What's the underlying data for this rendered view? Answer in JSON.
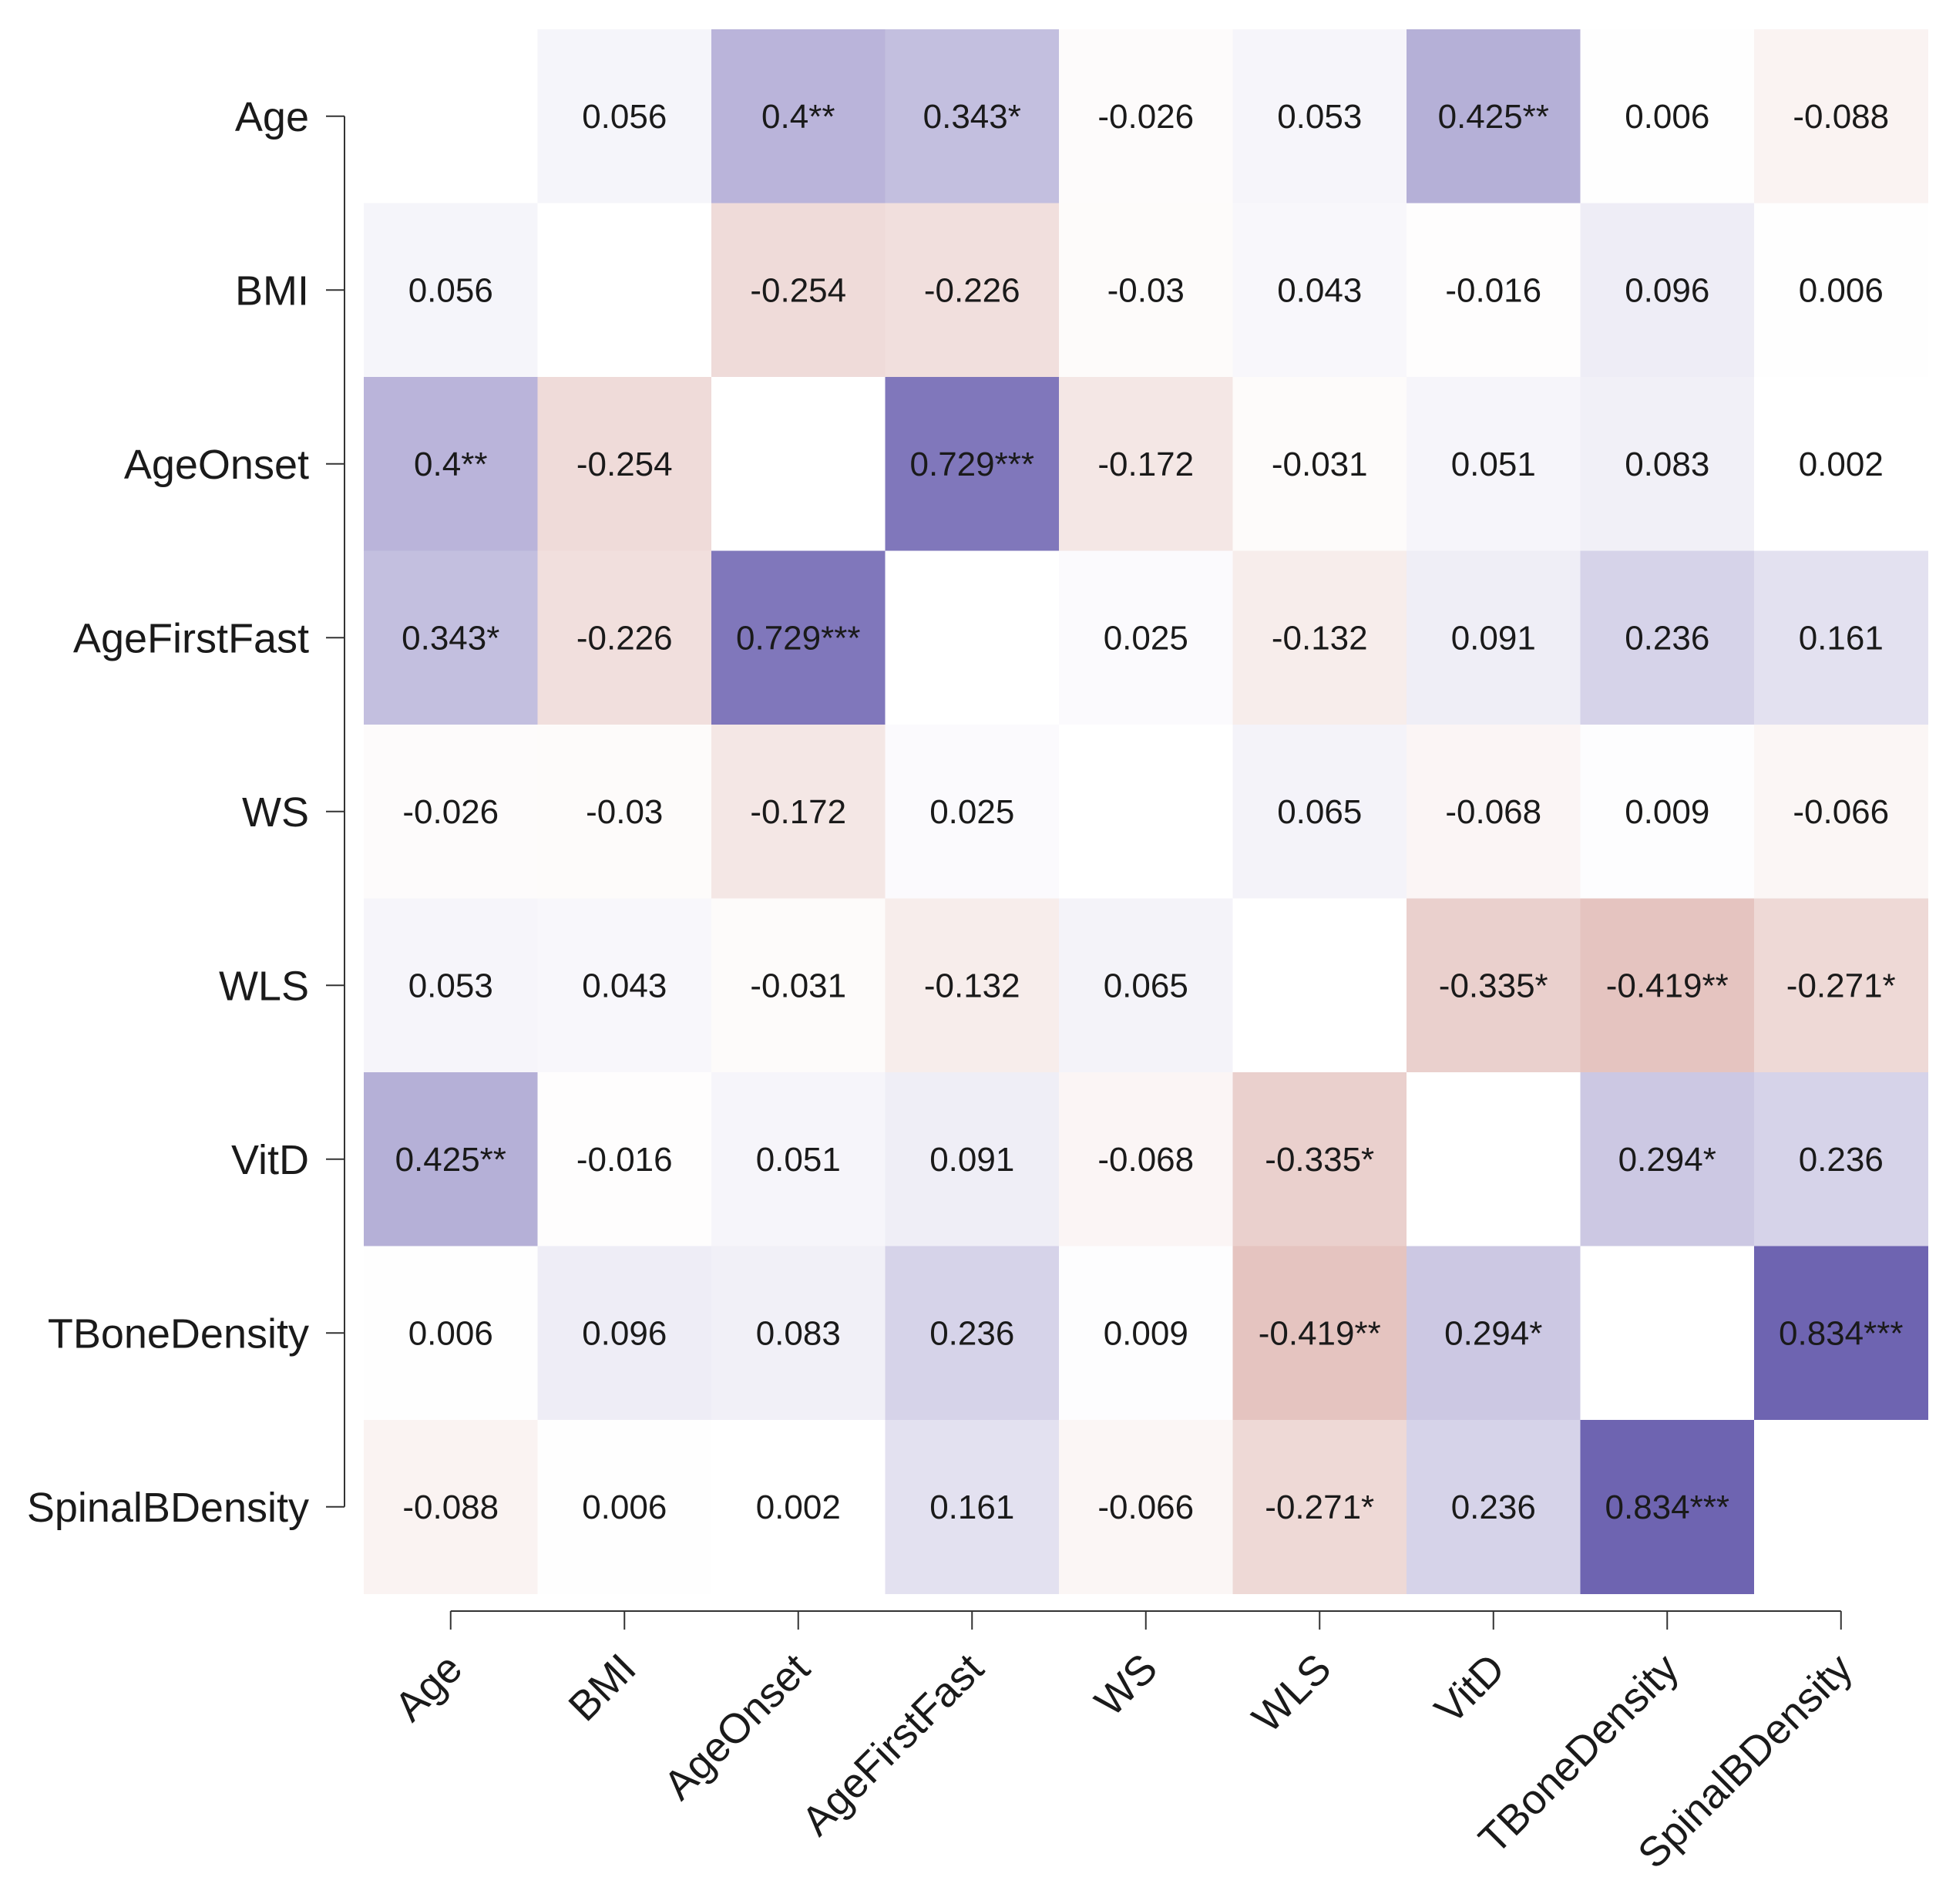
{
  "chart_data": {
    "type": "heatmap",
    "title": "",
    "xlabel": "",
    "ylabel": "",
    "variables": [
      "Age",
      "BMI",
      "AgeOnset",
      "AgeFirstFast",
      "WS",
      "WLS",
      "VitD",
      "TBoneDensity",
      "SpinalBDensity"
    ],
    "matrix": [
      [
        null,
        0.056,
        0.4,
        0.343,
        -0.026,
        0.053,
        0.425,
        0.006,
        -0.088
      ],
      [
        0.056,
        null,
        -0.254,
        -0.226,
        -0.03,
        0.043,
        -0.016,
        0.096,
        0.006
      ],
      [
        0.4,
        -0.254,
        null,
        0.729,
        -0.172,
        -0.031,
        0.051,
        0.083,
        0.002
      ],
      [
        0.343,
        -0.226,
        0.729,
        null,
        0.025,
        -0.132,
        0.091,
        0.236,
        0.161
      ],
      [
        -0.026,
        -0.03,
        -0.172,
        0.025,
        null,
        0.065,
        -0.068,
        0.009,
        -0.066
      ],
      [
        0.053,
        0.043,
        -0.031,
        -0.132,
        0.065,
        null,
        -0.335,
        -0.419,
        -0.271
      ],
      [
        0.425,
        -0.016,
        0.051,
        0.091,
        -0.068,
        -0.335,
        null,
        0.294,
        0.236
      ],
      [
        0.006,
        0.096,
        0.083,
        0.236,
        0.009,
        -0.419,
        0.294,
        null,
        0.834
      ],
      [
        -0.088,
        0.006,
        0.002,
        0.161,
        -0.066,
        -0.271,
        0.236,
        0.834,
        null
      ]
    ],
    "labels": [
      [
        "",
        "0.056",
        "0.4**",
        "0.343*",
        "-0.026",
        "0.053",
        "0.425**",
        "0.006",
        "-0.088"
      ],
      [
        "0.056",
        "",
        "-0.254",
        "-0.226",
        "-0.03",
        "0.043",
        "-0.016",
        "0.096",
        "0.006"
      ],
      [
        "0.4**",
        "-0.254",
        "",
        "0.729***",
        "-0.172",
        "-0.031",
        "0.051",
        "0.083",
        "0.002"
      ],
      [
        "0.343*",
        "-0.226",
        "0.729***",
        "",
        "0.025",
        "-0.132",
        "0.091",
        "0.236",
        "0.161"
      ],
      [
        "-0.026",
        "-0.03",
        "-0.172",
        "0.025",
        "",
        "0.065",
        "-0.068",
        "0.009",
        "-0.066"
      ],
      [
        "0.053",
        "0.043",
        "-0.031",
        "-0.132",
        "0.065",
        "",
        "-0.335*",
        "-0.419**",
        "-0.271*"
      ],
      [
        "0.425**",
        "-0.016",
        "0.051",
        "0.091",
        "-0.068",
        "-0.335*",
        "",
        "0.294*",
        "0.236"
      ],
      [
        "0.006",
        "0.096",
        "0.083",
        "0.236",
        "0.009",
        "-0.419**",
        "0.294*",
        "",
        "0.834***"
      ],
      [
        "-0.088",
        "0.006",
        "0.002",
        "0.161",
        "-0.066",
        "-0.271*",
        "0.236",
        "0.834***",
        ""
      ]
    ],
    "color_scale": {
      "positive": "#5a4ea6",
      "negative": "#c47a70",
      "neutral": "#ffffff",
      "range": [
        -1,
        1
      ]
    }
  }
}
